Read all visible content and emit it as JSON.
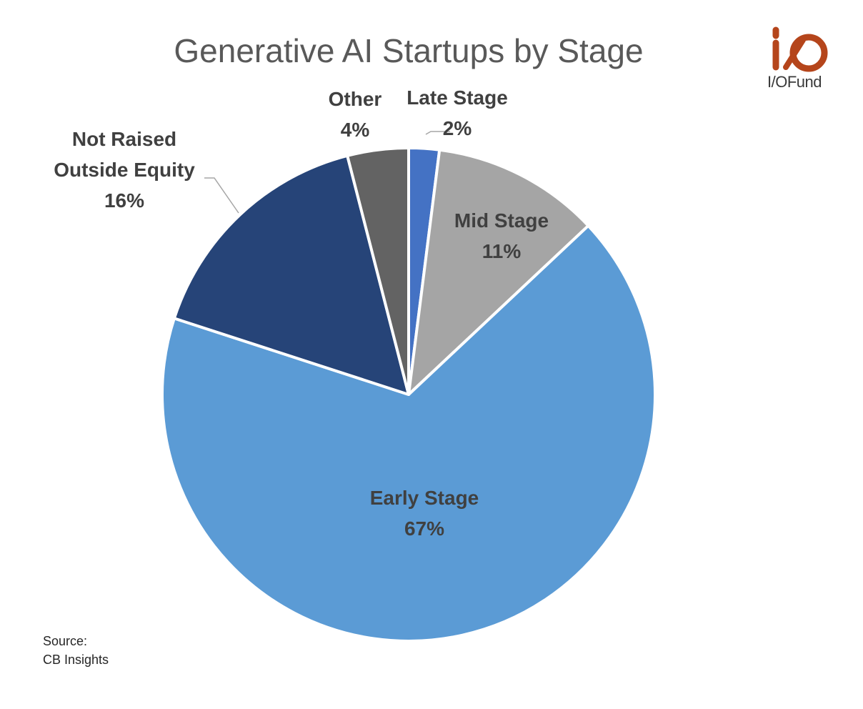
{
  "chart_data": {
    "type": "pie",
    "title": "Generative AI Startups by Stage",
    "slices": [
      {
        "label": "Late Stage",
        "value": 2,
        "value_label": "2%",
        "color": "#4472C4",
        "label_color": "#404040",
        "label_lines": [
          "Late Stage"
        ]
      },
      {
        "label": "Mid Stage",
        "value": 11,
        "value_label": "11%",
        "color": "#A5A5A5",
        "label_color": "#404040",
        "label_lines": [
          "Mid Stage"
        ]
      },
      {
        "label": "Early Stage",
        "value": 67,
        "value_label": "67%",
        "color": "#5B9BD5",
        "label_color": "#404040",
        "label_lines": [
          "Early Stage"
        ]
      },
      {
        "label": "Not Raised Outside Equity",
        "value": 16,
        "value_label": "16%",
        "color": "#264478",
        "label_color": "#404040",
        "label_lines": [
          "Not Raised",
          "Outside Equity"
        ]
      },
      {
        "label": "Other",
        "value": 4,
        "value_label": "4%",
        "color": "#636363",
        "label_color": "#404040",
        "label_lines": [
          "Other"
        ]
      }
    ],
    "start_angle_deg": 0,
    "direction": "clockwise",
    "legend": "none"
  },
  "source": {
    "line1": "Source:",
    "line2": "CB Insights"
  },
  "logo": {
    "text": "I/OFund",
    "color": "#B5451B"
  }
}
